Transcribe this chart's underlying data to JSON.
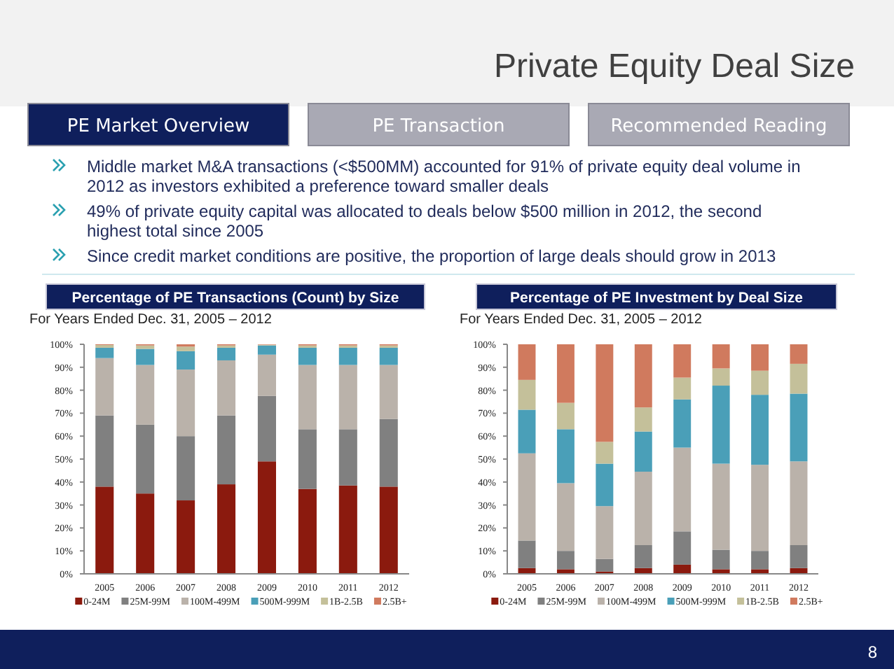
{
  "chart_data": [
    {
      "type": "other",
      "title": "Private Equity Deal Size",
      "annotations": [
        "PE Market Overview",
        "PE Transaction",
        "Recommended Reading",
        "Middle market M&A transactions (<$500MM) accounted for 91% of private equity deal volume in 2012 as investors exhibited a preference toward smaller deals",
        "49% of private equity capital was allocated to deals below $500 million in 2012, the second highest total since 2005",
        "Since credit market conditions are positive, the proportion of large deals should grow in 2013",
        "8"
      ]
    },
    {
      "type": "bar",
      "stacked": true,
      "title": "Percentage of PE Transactions (Count) by Size",
      "subtitle": "For Years Ended Dec. 31, 2005 – 2012",
      "categories": [
        "2005",
        "2006",
        "2007",
        "2008",
        "2009",
        "2010",
        "2011",
        "2012"
      ],
      "ylim": [
        0,
        100
      ],
      "yticks": [
        {
          "value": 0,
          "label": "0%"
        },
        {
          "value": 10,
          "label": "10%"
        },
        {
          "value": 20,
          "label": "20%"
        },
        {
          "value": 30,
          "label": "30%"
        },
        {
          "value": 40,
          "label": "40%"
        },
        {
          "value": 50,
          "label": "50%"
        },
        {
          "value": 60,
          "label": "60%"
        },
        {
          "value": 70,
          "label": "70%"
        },
        {
          "value": 80,
          "label": "80%"
        },
        {
          "value": 90,
          "label": "90%"
        },
        {
          "value": 100,
          "label": "100%"
        }
      ],
      "grid": false,
      "legend": "bottom",
      "series": [
        {
          "name": "0-24M",
          "color": "#8b1a0e",
          "values": [
            38,
            35,
            32,
            39,
            49,
            37,
            38.5,
            38
          ]
        },
        {
          "name": "25M-99M",
          "color": "#808080",
          "values": [
            31,
            30,
            28,
            30,
            28.5,
            26,
            24.5,
            29.5
          ]
        },
        {
          "name": "100M-499M",
          "color": "#bab2aa",
          "values": [
            25,
            26,
            29,
            24,
            18,
            28,
            28,
            23.5
          ]
        },
        {
          "name": "500M-999M",
          "color": "#4a9fb8",
          "values": [
            4.5,
            7,
            8,
            5.5,
            4,
            7.5,
            7.5,
            7.5
          ]
        },
        {
          "name": "1B-2.5B",
          "color": "#c4c09a",
          "values": [
            1.2,
            1.5,
            2,
            1,
            0.3,
            1,
            1,
            1
          ]
        },
        {
          "name": "2.5B+",
          "color": "#d07a5e",
          "values": [
            0.3,
            0.5,
            1,
            0.5,
            0.2,
            0.5,
            0.5,
            0.5
          ]
        }
      ]
    },
    {
      "type": "bar",
      "stacked": true,
      "title": "Percentage of PE Investment by Deal Size",
      "subtitle": "For Years Ended Dec. 31, 2005 – 2012",
      "categories": [
        "2005",
        "2006",
        "2007",
        "2008",
        "2009",
        "2010",
        "2011",
        "2012"
      ],
      "ylim": [
        0,
        100
      ],
      "yticks": [
        {
          "value": 0,
          "label": "0%"
        },
        {
          "value": 10,
          "label": "10%"
        },
        {
          "value": 20,
          "label": "20%"
        },
        {
          "value": 30,
          "label": "30%"
        },
        {
          "value": 40,
          "label": "40%"
        },
        {
          "value": 50,
          "label": "50%"
        },
        {
          "value": 60,
          "label": "60%"
        },
        {
          "value": 70,
          "label": "70%"
        },
        {
          "value": 80,
          "label": "80%"
        },
        {
          "value": 90,
          "label": "90%"
        },
        {
          "value": 100,
          "label": "100%"
        }
      ],
      "grid": false,
      "legend": "bottom",
      "series": [
        {
          "name": "0-24M",
          "color": "#8b1a0e",
          "values": [
            2.5,
            2,
            1,
            2.5,
            4,
            2,
            2,
            2.5
          ]
        },
        {
          "name": "25M-99M",
          "color": "#808080",
          "values": [
            12,
            8,
            5.5,
            10,
            14.5,
            8.5,
            8,
            10
          ]
        },
        {
          "name": "100M-499M",
          "color": "#bab2aa",
          "values": [
            38,
            29.5,
            23,
            32,
            36.5,
            37.5,
            37.5,
            36.5
          ]
        },
        {
          "name": "500M-999M",
          "color": "#4a9fb8",
          "values": [
            19,
            23.5,
            18.5,
            17.5,
            21,
            34,
            30.5,
            29.5
          ]
        },
        {
          "name": "1B-2.5B",
          "color": "#c4c09a",
          "values": [
            13,
            11.5,
            9.5,
            10.5,
            9.5,
            7.5,
            10.5,
            13
          ]
        },
        {
          "name": "2.5B+",
          "color": "#d07a5e",
          "values": [
            15.5,
            25.5,
            42.5,
            27.5,
            14.5,
            10.5,
            11.5,
            8.5
          ]
        }
      ]
    }
  ]
}
